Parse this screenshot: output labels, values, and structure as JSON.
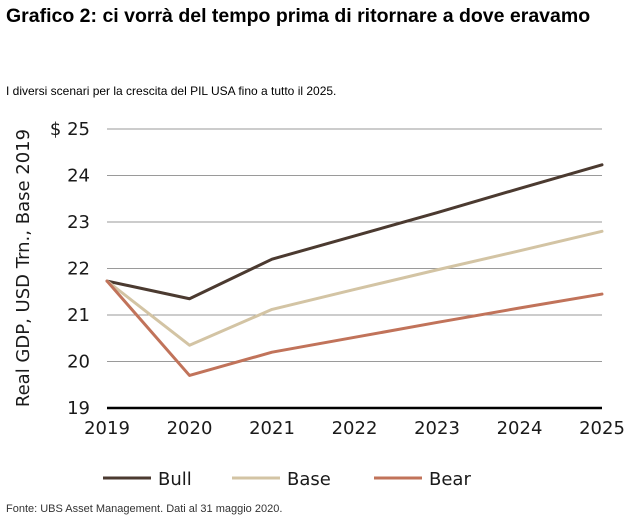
{
  "header": {
    "title": "Grafico 2: ci vorrà del tempo prima di ritornare a dove eravamo",
    "subtitle": "I diversi scenari per la crescita del PIL USA fino a tutto il 2025."
  },
  "footer": {
    "source": "Fonte: UBS Asset Management. Dati al 31 maggio 2020."
  },
  "chart_data": {
    "type": "line",
    "x": [
      2019,
      2020,
      2021,
      2022,
      2023,
      2024,
      2025
    ],
    "x_tick_labels": [
      "2019",
      "2020",
      "2021",
      "2022",
      "2023",
      "2024",
      "2025"
    ],
    "y_tick_labels": [
      "19",
      "20",
      "21",
      "22",
      "23",
      "24",
      "$ 25"
    ],
    "ylabel": "Real GDP, USD Trn., Base 2019",
    "ylim": [
      19,
      25
    ],
    "grid": true,
    "legend_position": "bottom",
    "series": [
      {
        "name": "Bull",
        "color": "#4b3a30",
        "values": [
          21.73,
          21.35,
          22.2,
          22.7,
          23.2,
          23.72,
          24.23
        ]
      },
      {
        "name": "Base",
        "color": "#d3c4a4",
        "values": [
          21.73,
          20.35,
          21.12,
          21.55,
          21.97,
          22.38,
          22.8
        ]
      },
      {
        "name": "Bear",
        "color": "#c1735a",
        "values": [
          21.73,
          19.7,
          20.2,
          20.52,
          20.84,
          21.15,
          21.45
        ]
      }
    ]
  }
}
